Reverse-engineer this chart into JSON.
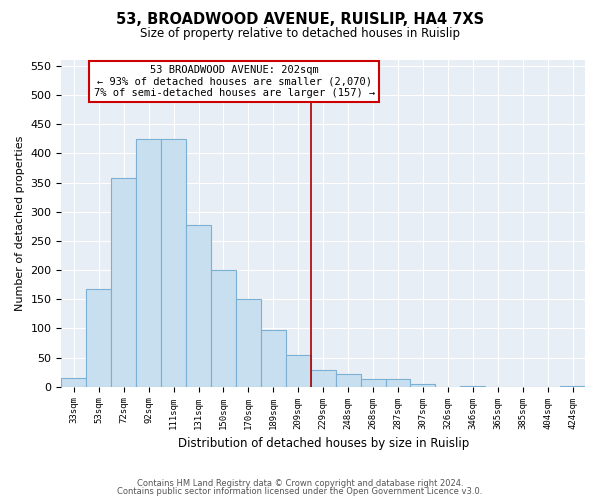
{
  "title": "53, BROADWOOD AVENUE, RUISLIP, HA4 7XS",
  "subtitle": "Size of property relative to detached houses in Ruislip",
  "xlabel": "Distribution of detached houses by size in Ruislip",
  "ylabel": "Number of detached properties",
  "bar_labels": [
    "33sqm",
    "53sqm",
    "72sqm",
    "92sqm",
    "111sqm",
    "131sqm",
    "150sqm",
    "170sqm",
    "189sqm",
    "209sqm",
    "229sqm",
    "248sqm",
    "268sqm",
    "287sqm",
    "307sqm",
    "326sqm",
    "346sqm",
    "365sqm",
    "385sqm",
    "404sqm",
    "424sqm"
  ],
  "bar_heights": [
    15,
    168,
    358,
    425,
    425,
    278,
    200,
    150,
    98,
    55,
    28,
    22,
    14,
    14,
    5,
    0,
    2,
    0,
    0,
    0,
    2
  ],
  "bar_color": "#c8dff0",
  "bar_edge_color": "#7ab0d4",
  "property_line_x": 9.5,
  "property_label": "53 BROADWOOD AVENUE: 202sqm",
  "annotation_line1": "← 93% of detached houses are smaller (2,070)",
  "annotation_line2": "7% of semi-detached houses are larger (157) →",
  "annotation_box_color": "#ffffff",
  "annotation_box_edge": "#cc0000",
  "vline_color": "#aa0000",
  "ylim": [
    0,
    560
  ],
  "yticks": [
    0,
    50,
    100,
    150,
    200,
    250,
    300,
    350,
    400,
    450,
    500,
    550
  ],
  "footer1": "Contains HM Land Registry data © Crown copyright and database right 2024.",
  "footer2": "Contains public sector information licensed under the Open Government Licence v3.0.",
  "figure_bg_color": "#ffffff",
  "plot_bg_color": "#e8eef5"
}
